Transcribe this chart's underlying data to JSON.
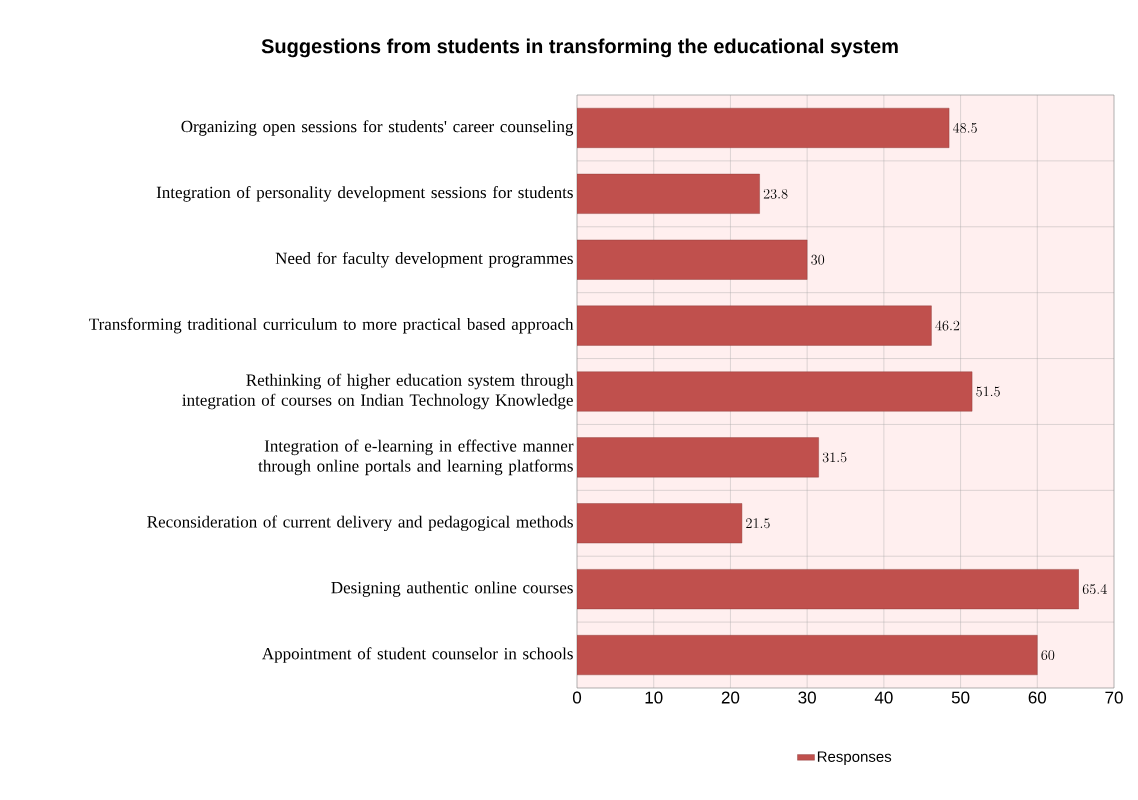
{
  "chart_data": {
    "type": "bar",
    "orientation": "horizontal",
    "title": "Suggestions from students in transforming the educational system",
    "categories": [
      "Organizing open sessions for students' career counseling",
      "Integration of personality development sessions for students",
      "Need for faculty development programmes",
      "Transforming traditional curriculum to more practical based approach",
      "Rethinking of higher education system through integration of courses on Indian Technology Knowledge",
      "Integration of e-learning in effective manner through online portals and learning platforms",
      "Reconsideration of current delivery and pedagogical methods",
      "Designing authentic online courses",
      "Appointment of student counselor in schools"
    ],
    "series": [
      {
        "name": "Responses",
        "color": "#c0504d",
        "values": [
          48.5,
          23.8,
          30,
          46.2,
          51.5,
          31.5,
          21.5,
          65.4,
          60
        ]
      }
    ],
    "xlim": [
      0,
      70
    ],
    "xticks": [
      0,
      10,
      20,
      30,
      40,
      50,
      60,
      70
    ],
    "grid": true,
    "legend": "bottom",
    "data_labels": true
  }
}
